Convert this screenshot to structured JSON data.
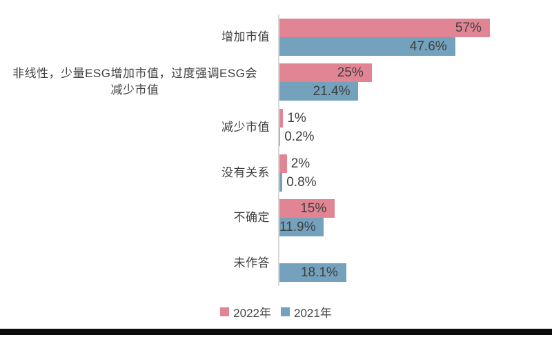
{
  "chart": {
    "axis_color": "#d9d9d9",
    "text_color": "#3f3f3f",
    "bottom_bar_color": "#0c0c0c",
    "background": "#ffffff"
  },
  "chart_data": {
    "type": "bar",
    "orientation": "horizontal",
    "title": "",
    "xlabel": "",
    "ylabel": "",
    "xlim": [
      0,
      74
    ],
    "grid": false,
    "legend_position": "bottom",
    "categories": [
      "增加市值",
      "非线性，少量ESG增加市值，过度强调ESG会\n减少市值",
      "减少市值",
      "没有关系",
      "不确定",
      "未作答"
    ],
    "series": [
      {
        "name": "2022年",
        "color": "#e18595",
        "values": [
          57,
          25,
          1,
          2,
          15,
          null
        ],
        "labels": [
          "57%",
          "25%",
          "1%",
          "2%",
          "15%",
          ""
        ]
      },
      {
        "name": "2021年",
        "color": "#74a2bd",
        "values": [
          47.6,
          21.4,
          0.2,
          0.8,
          11.9,
          18.1
        ],
        "labels": [
          "47.6%",
          "21.4%",
          "0.2%",
          "0.8%",
          "11.9%",
          "18.1%"
        ]
      }
    ]
  },
  "legend": {
    "items": [
      {
        "label": "2022年",
        "color": "#e18595"
      },
      {
        "label": "2021年",
        "color": "#74a2bd"
      }
    ]
  }
}
